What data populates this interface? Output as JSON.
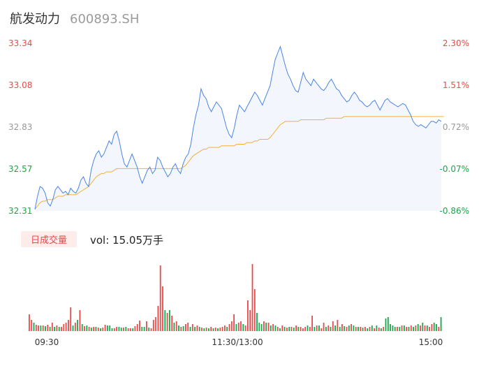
{
  "header": {
    "name": "航发动力",
    "code": "600893.SH"
  },
  "colors": {
    "up": "#e84a4a",
    "down": "#1aa64a",
    "neutral": "#999999",
    "price_line": "#4a84e8",
    "avg_line": "#f2b13a",
    "area_fill": "#f3f6fd"
  },
  "volume_panel": {
    "badge": "日成交量",
    "label": "vol: 15.05万手"
  },
  "chart_data": [
    {
      "type": "line",
      "title": "",
      "x_ticks": [
        "09:30",
        "11:30/13:00",
        "15:00"
      ],
      "y_ticks_left": [
        "33.34",
        "33.08",
        "32.83",
        "32.57",
        "32.31"
      ],
      "y_ticks_right": [
        "2.30%",
        "1.51%",
        "0.72%",
        "-0.07%",
        "-0.86%"
      ],
      "ylim": [
        32.31,
        33.34
      ],
      "series": [
        {
          "name": "price",
          "values": [
            32.32,
            32.4,
            32.46,
            32.45,
            32.42,
            32.36,
            32.34,
            32.38,
            32.44,
            32.46,
            32.44,
            32.42,
            32.43,
            32.41,
            32.45,
            32.43,
            32.42,
            32.45,
            32.5,
            32.52,
            32.48,
            32.46,
            32.56,
            32.62,
            32.66,
            32.68,
            32.64,
            32.66,
            32.7,
            32.74,
            32.72,
            32.78,
            32.8,
            32.74,
            32.66,
            32.6,
            32.58,
            32.62,
            32.66,
            32.62,
            32.58,
            32.52,
            32.48,
            32.52,
            32.56,
            32.58,
            32.54,
            32.56,
            32.64,
            32.62,
            32.58,
            32.55,
            32.52,
            32.54,
            32.58,
            32.6,
            32.56,
            32.54,
            32.6,
            32.64,
            32.66,
            32.72,
            32.82,
            32.9,
            32.96,
            33.06,
            33.02,
            33.0,
            32.95,
            32.92,
            32.95,
            32.98,
            32.96,
            32.94,
            32.88,
            32.82,
            32.78,
            32.76,
            32.82,
            32.9,
            32.96,
            32.94,
            32.92,
            32.95,
            32.98,
            33.01,
            33.04,
            33.02,
            32.99,
            32.96,
            33.0,
            33.04,
            33.08,
            33.16,
            33.24,
            33.28,
            33.32,
            33.26,
            33.2,
            33.15,
            33.12,
            33.08,
            33.05,
            33.04,
            33.1,
            33.16,
            33.12,
            33.1,
            33.08,
            33.12,
            33.1,
            33.08,
            33.06,
            33.05,
            33.07,
            33.1,
            33.12,
            33.09,
            33.06,
            33.05,
            33.02,
            33.0,
            32.98,
            32.99,
            33.02,
            33.04,
            33.02,
            32.99,
            32.98,
            32.96,
            32.95,
            32.96,
            32.98,
            32.99,
            32.96,
            32.93,
            32.96,
            32.99,
            33.0,
            32.98,
            32.97,
            32.96,
            32.95,
            32.96,
            32.97,
            32.96,
            32.93,
            32.9,
            32.86,
            32.84,
            32.83,
            32.84,
            32.83,
            32.82,
            32.84,
            32.86,
            32.86,
            32.85,
            32.87,
            32.86
          ]
        },
        {
          "name": "average",
          "values": [
            32.32,
            32.34,
            32.36,
            32.37,
            32.37,
            32.38,
            32.38,
            32.38,
            32.39,
            32.4,
            32.4,
            32.4,
            32.41,
            32.41,
            32.41,
            32.41,
            32.41,
            32.42,
            32.43,
            32.44,
            32.45,
            32.46,
            32.48,
            32.5,
            32.52,
            32.53,
            32.54,
            32.54,
            32.55,
            32.55,
            32.55,
            32.56,
            32.57,
            32.57,
            32.57,
            32.57,
            32.57,
            32.57,
            32.57,
            32.57,
            32.57,
            32.57,
            32.57,
            32.57,
            32.57,
            32.57,
            32.57,
            32.57,
            32.57,
            32.57,
            32.57,
            32.57,
            32.57,
            32.57,
            32.57,
            32.57,
            32.57,
            32.57,
            32.58,
            32.59,
            32.61,
            32.63,
            32.65,
            32.66,
            32.67,
            32.68,
            32.69,
            32.69,
            32.7,
            32.7,
            32.7,
            32.7,
            32.7,
            32.71,
            32.71,
            32.71,
            32.71,
            32.71,
            32.71,
            32.72,
            32.72,
            32.72,
            32.72,
            32.73,
            32.73,
            32.73,
            32.74,
            32.74,
            32.75,
            32.75,
            32.75,
            32.75,
            32.76,
            32.78,
            32.8,
            32.82,
            32.84,
            32.85,
            32.86,
            32.86,
            32.86,
            32.86,
            32.86,
            32.86,
            32.87,
            32.87,
            32.87,
            32.87,
            32.87,
            32.87,
            32.87,
            32.87,
            32.87,
            32.87,
            32.88,
            32.88,
            32.88,
            32.88,
            32.88,
            32.88,
            32.88,
            32.89,
            32.89,
            32.89,
            32.89,
            32.89,
            32.89,
            32.89,
            32.89,
            32.89,
            32.89,
            32.89,
            32.89,
            32.89,
            32.89,
            32.89,
            32.89,
            32.89,
            32.89,
            32.89,
            32.89,
            32.89,
            32.89,
            32.89,
            32.89,
            32.89,
            32.89,
            32.89,
            32.89,
            32.89,
            32.89,
            32.89,
            32.89,
            32.89,
            32.89,
            32.89,
            32.89,
            32.89,
            32.89,
            32.89,
            32.89
          ]
        }
      ]
    },
    {
      "type": "bar",
      "title": "",
      "x_ticks": [
        "09:30",
        "11:30/13:00",
        "15:00"
      ],
      "values": [
        24,
        16,
        12,
        9,
        8,
        8,
        8,
        7,
        9,
        6,
        12,
        6,
        8,
        6,
        6,
        10,
        12,
        16,
        34,
        8,
        12,
        16,
        30,
        10,
        7,
        8,
        6,
        5,
        6,
        6,
        5,
        4,
        5,
        9,
        8,
        8,
        4,
        4,
        6,
        6,
        5,
        5,
        6,
        4,
        4,
        4,
        7,
        10,
        15,
        6,
        6,
        14,
        5,
        4,
        16,
        20,
        36,
        94,
        64,
        30,
        26,
        30,
        22,
        12,
        14,
        8,
        6,
        7,
        10,
        12,
        6,
        10,
        6,
        8,
        6,
        5,
        4,
        5,
        4,
        6,
        4,
        5,
        4,
        5,
        6,
        8,
        6,
        10,
        14,
        24,
        10,
        12,
        14,
        10,
        8,
        44,
        30,
        96,
        60,
        26,
        12,
        10,
        14,
        12,
        12,
        8,
        10,
        8,
        6,
        4,
        8,
        6,
        5,
        6,
        6,
        5,
        8,
        6,
        6,
        4,
        6,
        8,
        6,
        22,
        6,
        8,
        8,
        4,
        12,
        6,
        8,
        6,
        14,
        8,
        16,
        6,
        10,
        7,
        6,
        8,
        10,
        8,
        6,
        6,
        6,
        5,
        6,
        4,
        6,
        8,
        4,
        8,
        5,
        4,
        6,
        18,
        20,
        10,
        8,
        6,
        6,
        6,
        8,
        8,
        6,
        6,
        8,
        6,
        8,
        10,
        8,
        12,
        8,
        8,
        6,
        10,
        12,
        10,
        6,
        20
      ],
      "directions": [
        "u",
        "u",
        "d",
        "u",
        "u",
        "d",
        "u",
        "d",
        "u",
        "d",
        "u",
        "d",
        "u",
        "d",
        "u",
        "u",
        "u",
        "u",
        "u",
        "d",
        "u",
        "d",
        "u",
        "d",
        "u",
        "d",
        "u",
        "d",
        "u",
        "d",
        "u",
        "d",
        "u",
        "u",
        "d",
        "d",
        "d",
        "u",
        "u",
        "d",
        "d",
        "u",
        "d",
        "u",
        "u",
        "d",
        "u",
        "u",
        "u",
        "d",
        "d",
        "u",
        "d",
        "u",
        "u",
        "u",
        "u",
        "u",
        "u",
        "d",
        "u",
        "d",
        "u",
        "d",
        "u",
        "d",
        "u",
        "d",
        "u",
        "u",
        "d",
        "u",
        "d",
        "u",
        "d",
        "u",
        "d",
        "u",
        "d",
        "u",
        "d",
        "u",
        "d",
        "u",
        "u",
        "u",
        "d",
        "u",
        "u",
        "u",
        "d",
        "u",
        "u",
        "d",
        "u",
        "u",
        "u",
        "u",
        "u",
        "d",
        "d",
        "d",
        "u",
        "d",
        "u",
        "d",
        "u",
        "d",
        "u",
        "d",
        "u",
        "d",
        "u",
        "d",
        "u",
        "d",
        "u",
        "d",
        "u",
        "u",
        "u",
        "d",
        "u",
        "u",
        "d",
        "u",
        "d",
        "u",
        "u",
        "d",
        "u",
        "d",
        "u",
        "d",
        "u",
        "d",
        "u",
        "d",
        "u",
        "d",
        "u",
        "d",
        "u",
        "d",
        "u",
        "d",
        "u",
        "d",
        "u",
        "d",
        "u",
        "d",
        "u",
        "d",
        "u",
        "d",
        "d",
        "d",
        "d",
        "d",
        "u",
        "d",
        "u",
        "d",
        "u",
        "d",
        "u",
        "d",
        "u",
        "d",
        "u",
        "d",
        "u",
        "d",
        "u",
        "u",
        "d",
        "d",
        "u",
        "d"
      ]
    }
  ]
}
